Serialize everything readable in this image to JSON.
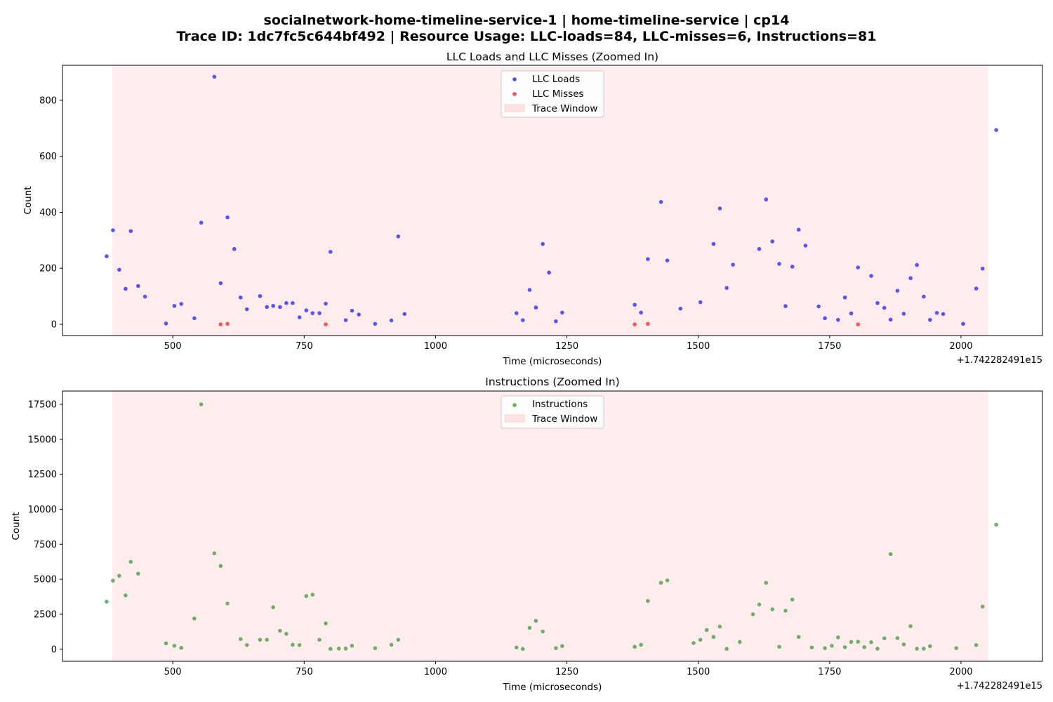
{
  "suptitle_line1": "socialnetwork-home-timeline-service-1 | home-timeline-service | cp14",
  "suptitle_line2": "Trace ID: 1dc7fc5c644bf492 | Resource Usage: LLC-loads=84, LLC-misses=6, Instructions=81",
  "chart_data": [
    {
      "type": "scatter",
      "title": "LLC Loads and LLC Misses (Zoomed In)",
      "xlabel": "Time (microseconds)",
      "ylabel": "Count",
      "x_offset_label": "+1.742282491e15",
      "xlim": [
        290,
        2155
      ],
      "ylim": [
        -40,
        925
      ],
      "xticks": [
        500,
        750,
        1000,
        1250,
        1500,
        1750,
        2000
      ],
      "yticks": [
        0,
        200,
        400,
        600,
        800
      ],
      "trace_window": [
        385,
        2052
      ],
      "grid": false,
      "legend_position": "upper center",
      "legend": [
        "LLC Loads",
        "LLC Misses",
        "Trace Window"
      ],
      "colors": {
        "LLC Loads": "#0000ff",
        "LLC Misses": "#ff0000",
        "Trace Window": "#ffcccc"
      },
      "series": [
        {
          "name": "LLC Loads",
          "color": "#0000ff",
          "points": [
            [
              374,
              243
            ],
            [
              386,
              336
            ],
            [
              398,
              195
            ],
            [
              410,
              127
            ],
            [
              420,
              333
            ],
            [
              434,
              137
            ],
            [
              447,
              99
            ],
            [
              487,
              3
            ],
            [
              503,
              66
            ],
            [
              516,
              73
            ],
            [
              541,
              22
            ],
            [
              554,
              363
            ],
            [
              579,
              884
            ],
            [
              591,
              147
            ],
            [
              604,
              382
            ],
            [
              617,
              269
            ],
            [
              629,
              96
            ],
            [
              641,
              54
            ],
            [
              666,
              101
            ],
            [
              679,
              62
            ],
            [
              691,
              66
            ],
            [
              704,
              62
            ],
            [
              716,
              76
            ],
            [
              728,
              76
            ],
            [
              741,
              25
            ],
            [
              754,
              50
            ],
            [
              766,
              40
            ],
            [
              779,
              40
            ],
            [
              791,
              74
            ],
            [
              800,
              259
            ],
            [
              829,
              15
            ],
            [
              841,
              49
            ],
            [
              854,
              35
            ],
            [
              885,
              2
            ],
            [
              916,
              14
            ],
            [
              929,
              314
            ],
            [
              941,
              37
            ],
            [
              1154,
              40
            ],
            [
              1166,
              15
            ],
            [
              1179,
              123
            ],
            [
              1191,
              60
            ],
            [
              1204,
              287
            ],
            [
              1216,
              185
            ],
            [
              1229,
              11
            ],
            [
              1241,
              42
            ],
            [
              1379,
              70
            ],
            [
              1391,
              42
            ],
            [
              1404,
              233
            ],
            [
              1429,
              437
            ],
            [
              1441,
              228
            ],
            [
              1466,
              56
            ],
            [
              1504,
              79
            ],
            [
              1529,
              287
            ],
            [
              1541,
              414
            ],
            [
              1554,
              130
            ],
            [
              1566,
              213
            ],
            [
              1616,
              269
            ],
            [
              1629,
              446
            ],
            [
              1641,
              296
            ],
            [
              1654,
              216
            ],
            [
              1666,
              65
            ],
            [
              1679,
              206
            ],
            [
              1691,
              338
            ],
            [
              1704,
              281
            ],
            [
              1729,
              64
            ],
            [
              1741,
              22
            ],
            [
              1766,
              16
            ],
            [
              1779,
              96
            ],
            [
              1791,
              39
            ],
            [
              1804,
              203
            ],
            [
              1829,
              173
            ],
            [
              1841,
              76
            ],
            [
              1854,
              59
            ],
            [
              1866,
              17
            ],
            [
              1879,
              120
            ],
            [
              1891,
              38
            ],
            [
              1904,
              165
            ],
            [
              1916,
              212
            ],
            [
              1929,
              99
            ],
            [
              1941,
              16
            ],
            [
              1954,
              41
            ],
            [
              1966,
              37
            ],
            [
              2004,
              2
            ],
            [
              2029,
              128
            ],
            [
              2041,
              199
            ],
            [
              2067,
              694
            ]
          ]
        },
        {
          "name": "LLC Misses",
          "color": "#ff0000",
          "points": [
            [
              591,
              0
            ],
            [
              604,
              2
            ],
            [
              791,
              0
            ],
            [
              1379,
              0
            ],
            [
              1404,
              2
            ],
            [
              1804,
              0
            ]
          ]
        }
      ]
    },
    {
      "type": "scatter",
      "title": "Instructions (Zoomed In)",
      "xlabel": "Time (microseconds)",
      "ylabel": "Count",
      "x_offset_label": "+1.742282491e15",
      "xlim": [
        290,
        2155
      ],
      "ylim": [
        -860,
        18450
      ],
      "xticks": [
        500,
        750,
        1000,
        1250,
        1500,
        1750,
        2000
      ],
      "yticks": [
        0,
        2500,
        5000,
        7500,
        10000,
        12500,
        15000,
        17500
      ],
      "trace_window": [
        385,
        2052
      ],
      "grid": false,
      "legend_position": "upper center",
      "legend": [
        "Instructions",
        "Trace Window"
      ],
      "colors": {
        "Instructions": "#228b22",
        "Trace Window": "#ffcccc"
      },
      "series": [
        {
          "name": "Instructions",
          "color": "#228b22",
          "points": [
            [
              374,
              3400
            ],
            [
              386,
              4900
            ],
            [
              398,
              5250
            ],
            [
              410,
              3850
            ],
            [
              420,
              6250
            ],
            [
              434,
              5400
            ],
            [
              487,
              420
            ],
            [
              503,
              250
            ],
            [
              516,
              100
            ],
            [
              541,
              2200
            ],
            [
              554,
              17500
            ],
            [
              579,
              6850
            ],
            [
              591,
              5950
            ],
            [
              604,
              3270
            ],
            [
              629,
              730
            ],
            [
              641,
              300
            ],
            [
              666,
              680
            ],
            [
              679,
              680
            ],
            [
              691,
              3000
            ],
            [
              704,
              1320
            ],
            [
              716,
              1100
            ],
            [
              728,
              320
            ],
            [
              741,
              300
            ],
            [
              754,
              3800
            ],
            [
              766,
              3900
            ],
            [
              779,
              680
            ],
            [
              791,
              1850
            ],
            [
              800,
              30
            ],
            [
              816,
              50
            ],
            [
              829,
              50
            ],
            [
              841,
              250
            ],
            [
              885,
              80
            ],
            [
              916,
              320
            ],
            [
              929,
              680
            ],
            [
              1154,
              130
            ],
            [
              1166,
              20
            ],
            [
              1179,
              1530
            ],
            [
              1191,
              2030
            ],
            [
              1204,
              1270
            ],
            [
              1229,
              80
            ],
            [
              1241,
              230
            ],
            [
              1379,
              180
            ],
            [
              1391,
              320
            ],
            [
              1404,
              3450
            ],
            [
              1429,
              4750
            ],
            [
              1441,
              4920
            ],
            [
              1491,
              440
            ],
            [
              1504,
              680
            ],
            [
              1516,
              1370
            ],
            [
              1529,
              880
            ],
            [
              1541,
              1620
            ],
            [
              1554,
              30
            ],
            [
              1579,
              520
            ],
            [
              1604,
              2500
            ],
            [
              1616,
              3200
            ],
            [
              1629,
              4750
            ],
            [
              1641,
              2850
            ],
            [
              1654,
              180
            ],
            [
              1666,
              2750
            ],
            [
              1679,
              3550
            ],
            [
              1691,
              880
            ],
            [
              1716,
              130
            ],
            [
              1741,
              80
            ],
            [
              1754,
              250
            ],
            [
              1766,
              850
            ],
            [
              1779,
              150
            ],
            [
              1791,
              520
            ],
            [
              1804,
              540
            ],
            [
              1816,
              150
            ],
            [
              1829,
              500
            ],
            [
              1841,
              40
            ],
            [
              1854,
              780
            ],
            [
              1866,
              6800
            ],
            [
              1879,
              800
            ],
            [
              1891,
              350
            ],
            [
              1904,
              1650
            ],
            [
              1916,
              40
            ],
            [
              1929,
              40
            ],
            [
              1941,
              220
            ],
            [
              1991,
              80
            ],
            [
              2029,
              300
            ],
            [
              2041,
              3050
            ],
            [
              2067,
              8900
            ]
          ]
        }
      ]
    }
  ]
}
